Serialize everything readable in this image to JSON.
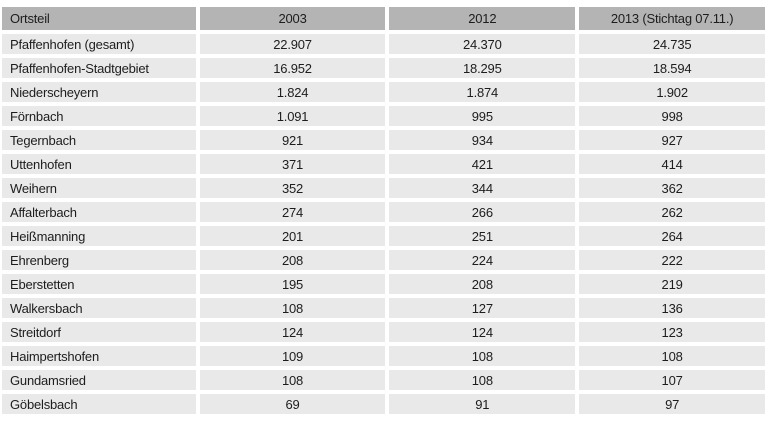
{
  "chart_data": {
    "type": "table",
    "columns": [
      "Ortsteil",
      "2003",
      "2012",
      "2013 (Stichtag 07.11.)"
    ],
    "rows": [
      {
        "label": "Pfaffenhofen (gesamt)",
        "values": [
          "22.907",
          "24.370",
          "24.735"
        ]
      },
      {
        "label": "Pfaffenhofen-Stadtgebiet",
        "values": [
          "16.952",
          "18.295",
          "18.594"
        ]
      },
      {
        "label": "Niederscheyern",
        "values": [
          "1.824",
          "1.874",
          "1.902"
        ]
      },
      {
        "label": "Förnbach",
        "values": [
          "1.091",
          "995",
          "998"
        ]
      },
      {
        "label": "Tegernbach",
        "values": [
          "921",
          "934",
          "927"
        ]
      },
      {
        "label": "Uttenhofen",
        "values": [
          "371",
          "421",
          "414"
        ]
      },
      {
        "label": "Weihern",
        "values": [
          "352",
          "344",
          "362"
        ]
      },
      {
        "label": "Affalterbach",
        "values": [
          "274",
          "266",
          "262"
        ]
      },
      {
        "label": "Heißmanning",
        "values": [
          "201",
          "251",
          "264"
        ]
      },
      {
        "label": "Ehrenberg",
        "values": [
          "208",
          "224",
          "222"
        ]
      },
      {
        "label": "Eberstetten",
        "values": [
          "195",
          "208",
          "219"
        ]
      },
      {
        "label": "Walkersbach",
        "values": [
          "108",
          "127",
          "136"
        ]
      },
      {
        "label": "Streitdorf",
        "values": [
          "124",
          "124",
          "123"
        ]
      },
      {
        "label": "Haimpertshofen",
        "values": [
          "109",
          "108",
          "108"
        ]
      },
      {
        "label": "Gundamsried",
        "values": [
          "108",
          "108",
          "107"
        ]
      },
      {
        "label": "Göbelsbach",
        "values": [
          "69",
          "91",
          "97"
        ]
      }
    ],
    "colors": {
      "header_bg": "#b4b4b4",
      "row_bg": "#e9e9e9",
      "gap": "#ffffff",
      "text": "#1d1d1d"
    }
  }
}
